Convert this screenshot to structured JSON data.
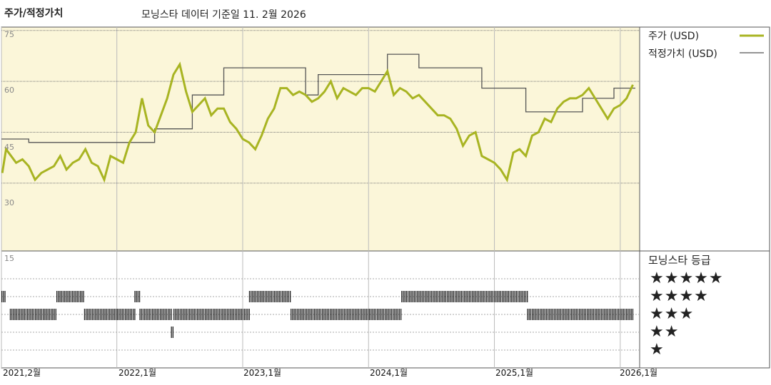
{
  "header": {
    "title": "주가/적정가치",
    "subtitle": "모닝스타 데이터 기준일 11. 2월 2026"
  },
  "legend": {
    "price_label": "주가 (USD)",
    "fair_label": "적정가치 (USD)"
  },
  "rating_panel": {
    "title": "모닝스타 등급",
    "rows": [
      "★★★★★",
      "★★★★",
      "★★★",
      "★★",
      "★"
    ]
  },
  "colors": {
    "price": "#a8b422",
    "fair": "#555555",
    "plot_bg": "#fbf6d9",
    "rating_bar": "#222222"
  },
  "chart_data": {
    "type": "line",
    "y_ticks": [
      "75",
      "60",
      "45",
      "30"
    ],
    "y_tick_values": [
      75,
      60,
      45,
      30
    ],
    "ylim": [
      10,
      76
    ],
    "lower_tick": "15",
    "x_ticks": [
      "2021,2월",
      "2022,1월",
      "2023,1월",
      "2024,1월",
      "2025,1월",
      "2026,1월"
    ],
    "x_tick_values": [
      2021.083,
      2022.0,
      2023.0,
      2024.0,
      2025.0,
      2026.0
    ],
    "xlim": [
      2021.083,
      2026.12
    ],
    "grid": true,
    "series": [
      {
        "name": "주가 (USD)",
        "x": [
          2021.09,
          2021.12,
          2021.16,
          2021.2,
          2021.25,
          2021.3,
          2021.35,
          2021.4,
          2021.45,
          2021.5,
          2021.55,
          2021.6,
          2021.65,
          2021.7,
          2021.75,
          2021.8,
          2021.85,
          2021.9,
          2021.95,
          2022.0,
          2022.05,
          2022.1,
          2022.15,
          2022.2,
          2022.25,
          2022.3,
          2022.35,
          2022.4,
          2022.45,
          2022.5,
          2022.55,
          2022.6,
          2022.65,
          2022.7,
          2022.75,
          2022.8,
          2022.85,
          2022.9,
          2022.95,
          2023.0,
          2023.05,
          2023.1,
          2023.15,
          2023.2,
          2023.25,
          2023.3,
          2023.35,
          2023.4,
          2023.45,
          2023.5,
          2023.55,
          2023.6,
          2023.65,
          2023.7,
          2023.75,
          2023.8,
          2023.85,
          2023.9,
          2023.95,
          2024.0,
          2024.05,
          2024.1,
          2024.15,
          2024.2,
          2024.25,
          2024.3,
          2024.35,
          2024.4,
          2024.45,
          2024.5,
          2024.55,
          2024.6,
          2024.65,
          2024.7,
          2024.75,
          2024.8,
          2024.85,
          2024.9,
          2024.95,
          2025.0,
          2025.05,
          2025.1,
          2025.15,
          2025.2,
          2025.25,
          2025.3,
          2025.35,
          2025.4,
          2025.45,
          2025.5,
          2025.55,
          2025.6,
          2025.65,
          2025.7,
          2025.75,
          2025.8,
          2025.85,
          2025.9,
          2025.95,
          2026.0,
          2026.05,
          2026.1
        ],
        "values": [
          33,
          40,
          38,
          36,
          37,
          35,
          31,
          33,
          34,
          35,
          38,
          34,
          36,
          37,
          40,
          36,
          35,
          31,
          38,
          37,
          36,
          42,
          45,
          55,
          47,
          45,
          50,
          55,
          62,
          65,
          57,
          51,
          53,
          55,
          50,
          52,
          52,
          48,
          46,
          43,
          42,
          40,
          44,
          49,
          52,
          58,
          58,
          56,
          57,
          56,
          54,
          55,
          57,
          60,
          55,
          58,
          57,
          56,
          58,
          58,
          57,
          60,
          63,
          56,
          58,
          57,
          55,
          56,
          54,
          52,
          50,
          50,
          49,
          46,
          41,
          44,
          45,
          38,
          37,
          36,
          34,
          31,
          39,
          40,
          38,
          44,
          45,
          49,
          48,
          52,
          54,
          55,
          55,
          56,
          58,
          55,
          52,
          49,
          52,
          53,
          55,
          59
        ]
      },
      {
        "name": "적정가치 (USD)",
        "x": [
          2021.083,
          2021.3,
          2021.3,
          2022.3,
          2022.3,
          2022.6,
          2022.6,
          2022.85,
          2022.85,
          2023.5,
          2023.5,
          2023.6,
          2023.6,
          2024.15,
          2024.15,
          2024.4,
          2024.4,
          2024.9,
          2024.9,
          2025.25,
          2025.25,
          2025.7,
          2025.7,
          2025.95,
          2025.95,
          2026.12
        ],
        "values": [
          43,
          43,
          42,
          42,
          46,
          46,
          56,
          56,
          64,
          64,
          56,
          56,
          62,
          62,
          68,
          68,
          64,
          64,
          58,
          58,
          51,
          51,
          55,
          55,
          58,
          58
        ]
      }
    ],
    "ratings": {
      "rows": [
        "★★★★★",
        "★★★★",
        "★★★",
        "★★",
        "★"
      ],
      "segments": [
        {
          "stars": 4,
          "start": 2021.083,
          "end": 2021.12
        },
        {
          "stars": 3,
          "start": 2021.15,
          "end": 2021.52
        },
        {
          "stars": 4,
          "start": 2021.52,
          "end": 2021.74
        },
        {
          "stars": 3,
          "start": 2021.74,
          "end": 2022.14
        },
        {
          "stars": 4,
          "start": 2022.14,
          "end": 2022.18
        },
        {
          "stars": 3,
          "start": 2022.18,
          "end": 2022.43
        },
        {
          "stars": 2,
          "start": 2022.43,
          "end": 2022.445
        },
        {
          "stars": 3,
          "start": 2022.45,
          "end": 2023.05
        },
        {
          "stars": 4,
          "start": 2023.05,
          "end": 2023.38
        },
        {
          "stars": 3,
          "start": 2023.38,
          "end": 2024.26
        },
        {
          "stars": 4,
          "start": 2024.26,
          "end": 2025.26
        },
        {
          "stars": 3,
          "start": 2025.26,
          "end": 2026.1
        }
      ]
    }
  }
}
